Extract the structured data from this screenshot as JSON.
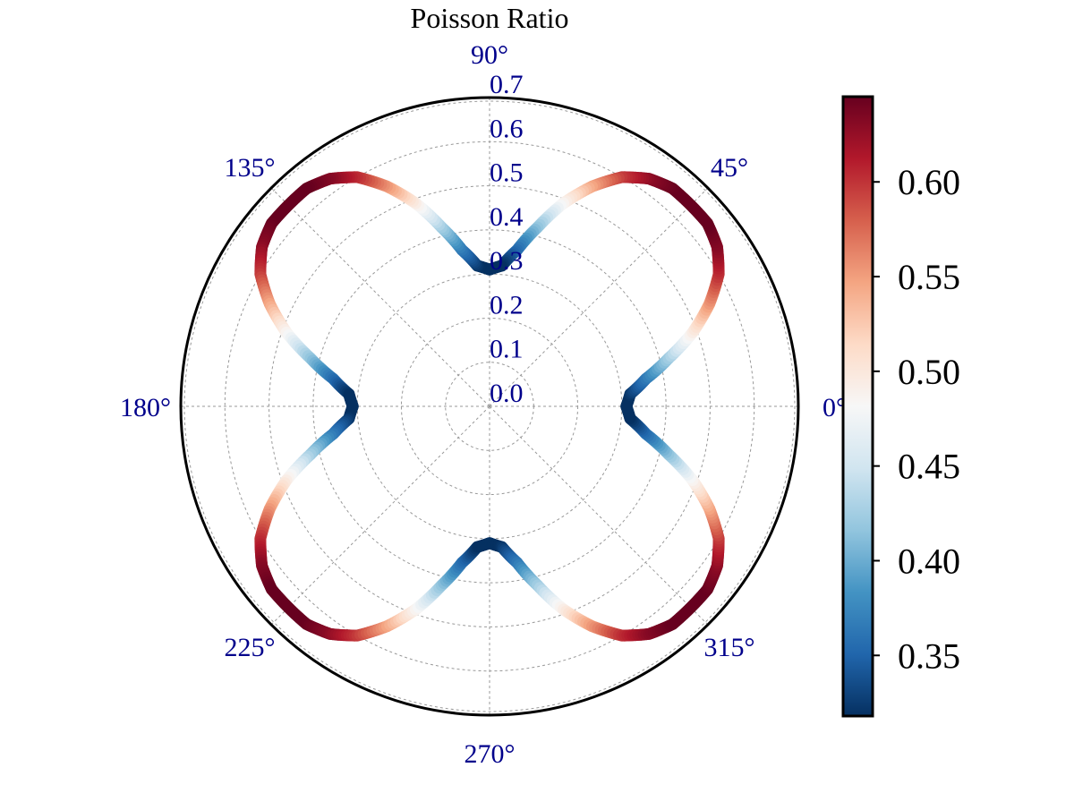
{
  "chart_data": {
    "type": "polar",
    "title": "Poisson Ratio",
    "angle_ticks": [
      {
        "deg": 0,
        "label": "0°"
      },
      {
        "deg": 45,
        "label": "45°"
      },
      {
        "deg": 90,
        "label": "90°"
      },
      {
        "deg": 135,
        "label": "135°"
      },
      {
        "deg": 180,
        "label": "180°"
      },
      {
        "deg": 225,
        "label": "225°"
      },
      {
        "deg": 270,
        "label": "270°"
      },
      {
        "deg": 315,
        "label": "315°"
      }
    ],
    "radial_ticks": [
      {
        "value": 0.0,
        "label": "0.0"
      },
      {
        "value": 0.1,
        "label": "0.1"
      },
      {
        "value": 0.2,
        "label": "0.2"
      },
      {
        "value": 0.3,
        "label": "0.3"
      },
      {
        "value": 0.4,
        "label": "0.4"
      },
      {
        "value": 0.5,
        "label": "0.5"
      },
      {
        "value": 0.6,
        "label": "0.6"
      },
      {
        "value": 0.7,
        "label": "0.7"
      }
    ],
    "rlim": [
      0,
      0.7
    ],
    "grid": true,
    "curve": {
      "symmetry": "4-fold",
      "theta_deg": [
        0,
        5,
        10,
        15,
        20,
        25,
        30,
        35,
        40,
        45
      ],
      "r": [
        0.31,
        0.32,
        0.36,
        0.42,
        0.49,
        0.55,
        0.6,
        0.63,
        0.645,
        0.645
      ],
      "colored_by": "r"
    },
    "colorbar": {
      "colormap": "RdBu_r",
      "range": [
        0.318,
        0.645
      ],
      "ticks": [
        {
          "value": 0.35,
          "label": "0.35"
        },
        {
          "value": 0.4,
          "label": "0.40"
        },
        {
          "value": 0.45,
          "label": "0.45"
        },
        {
          "value": 0.5,
          "label": "0.50"
        },
        {
          "value": 0.55,
          "label": "0.55"
        },
        {
          "value": 0.6,
          "label": "0.60"
        }
      ],
      "stops": [
        "#053061",
        "#2166ac",
        "#4393c3",
        "#92c5de",
        "#d1e5f0",
        "#f7f7f7",
        "#fddbc7",
        "#f4a582",
        "#d6604d",
        "#b2182b",
        "#67001f"
      ]
    }
  }
}
